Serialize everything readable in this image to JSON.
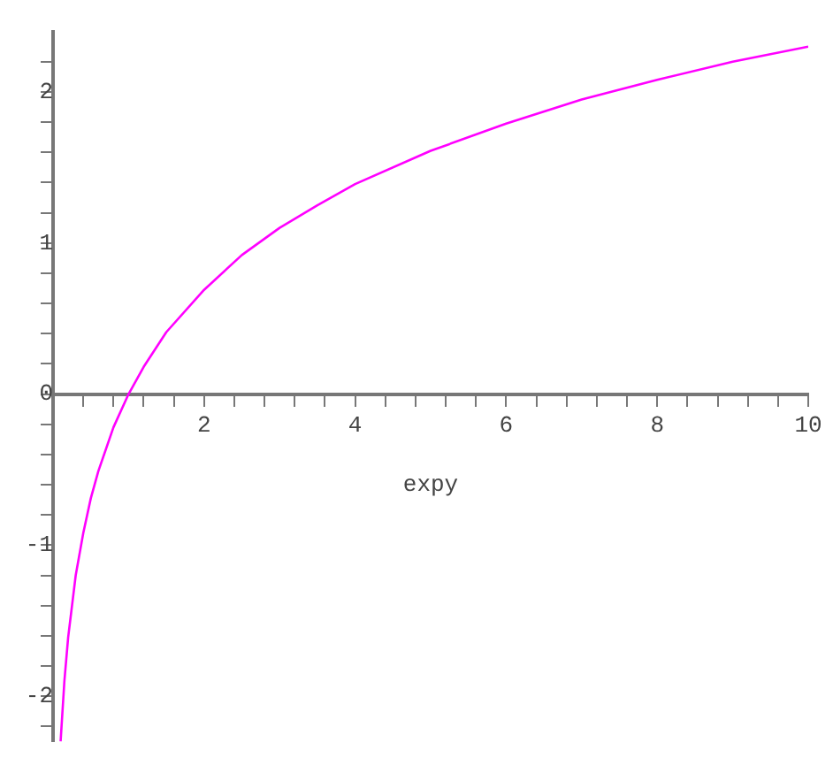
{
  "chart_data": {
    "type": "line",
    "xlabel": "expy",
    "x": [
      0.1,
      0.15,
      0.2,
      0.3,
      0.4,
      0.5,
      0.6,
      0.8,
      1,
      1.2,
      1.5,
      2,
      2.5,
      3,
      3.5,
      4,
      5,
      6,
      7,
      8,
      9,
      10
    ],
    "series": [
      {
        "color": "#ff00ff",
        "values": [
          -2.3,
          -1.9,
          -1.61,
          -1.2,
          -0.92,
          -0.69,
          -0.51,
          -0.22,
          0,
          0.18,
          0.41,
          0.69,
          0.92,
          1.1,
          1.25,
          1.39,
          1.61,
          1.79,
          1.95,
          2.08,
          2.2,
          2.3
        ]
      }
    ],
    "xlim": [
      0,
      10
    ],
    "ylim": [
      -2.3,
      2.4
    ],
    "xticks": [
      {
        "value": 0.4,
        "label": null
      },
      {
        "value": 0.8,
        "label": null
      },
      {
        "value": 1.2,
        "label": null
      },
      {
        "value": 1.6,
        "label": null
      },
      2,
      {
        "value": 2.4,
        "label": null
      },
      {
        "value": 2.8,
        "label": null
      },
      {
        "value": 3.2,
        "label": null
      },
      {
        "value": 3.6,
        "label": null
      },
      4,
      {
        "value": 4.4,
        "label": null
      },
      {
        "value": 4.8,
        "label": null
      },
      {
        "value": 5.2,
        "label": null
      },
      {
        "value": 5.6,
        "label": null
      },
      6,
      {
        "value": 6.4,
        "label": null
      },
      {
        "value": 6.8,
        "label": null
      },
      {
        "value": 7.2,
        "label": null
      },
      {
        "value": 7.6,
        "label": null
      },
      8,
      {
        "value": 8.4,
        "label": null
      },
      {
        "value": 8.8,
        "label": null
      },
      {
        "value": 9.2,
        "label": null
      },
      {
        "value": 9.6,
        "label": null
      },
      10
    ],
    "yticks": [
      {
        "value": -2.2,
        "label": null
      },
      -2,
      {
        "value": -1.8,
        "label": null
      },
      {
        "value": -1.6,
        "label": null
      },
      {
        "value": -1.4,
        "label": null
      },
      {
        "value": -1.2,
        "label": null
      },
      -1,
      {
        "value": -0.8,
        "label": null
      },
      {
        "value": -0.6,
        "label": null
      },
      {
        "value": -0.4,
        "label": null
      },
      {
        "value": -0.2,
        "label": null
      },
      0,
      {
        "value": 0.2,
        "label": null
      },
      {
        "value": 0.4,
        "label": null
      },
      {
        "value": 0.6,
        "label": null
      },
      {
        "value": 0.8,
        "label": null
      },
      1,
      {
        "value": 1.2,
        "label": null
      },
      {
        "value": 1.4,
        "label": null
      },
      {
        "value": 1.6,
        "label": null
      },
      {
        "value": 1.8,
        "label": null
      },
      2,
      {
        "value": 2.2,
        "label": null
      }
    ],
    "grid": false,
    "legend": false,
    "marker": "none",
    "line_style": "solid"
  }
}
